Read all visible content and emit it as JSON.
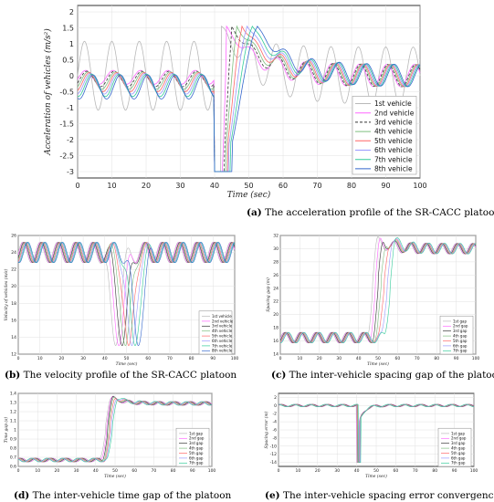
{
  "vehicle_colors": [
    "#b9b9b9",
    "#ff66ff",
    "#333333",
    "#7fbf7f",
    "#ff6666",
    "#9999ff",
    "#33cc99",
    "#3366cc"
  ],
  "chart_data": [
    {
      "id": "a",
      "type": "line",
      "caption_letter": "(a)",
      "caption": "The acceleration profile of the SR-CACC platoon",
      "xlabel": "Time (sec)",
      "ylabel": "Acceleration of vehicles (m/s²)",
      "xlim": [
        0,
        100
      ],
      "ylim": [
        -3.2,
        2.2
      ],
      "xticks": [
        0,
        10,
        20,
        30,
        40,
        50,
        60,
        70,
        80,
        90,
        100
      ],
      "yticks": [
        2,
        1.5,
        1,
        0.5,
        0,
        -0.5,
        -1,
        -1.5,
        -2,
        -2.5,
        -3
      ],
      "ytick_labels": [
        "2",
        "1.5",
        "1",
        "0.5",
        "0",
        "-0.5",
        "-1",
        "-1.5",
        "-2",
        "-2.5",
        "-3"
      ],
      "grid": true,
      "legend_position": "bottom-right",
      "series_names": [
        "1st vehicle",
        "2nd vehicle",
        "3rd vehicle",
        "4th vehicle",
        "5th vehicle",
        "6th vehicle",
        "7th vehicle",
        "8th vehicle"
      ],
      "shape": {
        "kind": "accel",
        "base": 0,
        "osc_amp": 0.9,
        "osc_period": 8,
        "drop_start": 40,
        "drop_value": -3,
        "drop_end": 42,
        "peak": 1.55,
        "lag": 1.5,
        "damp": 0.35
      }
    },
    {
      "id": "b",
      "type": "line",
      "caption_letter": "(b)",
      "caption": "The velocity profile of the SR-CACC platoon",
      "xlabel": "Time (sec)",
      "ylabel": "Velocity of vehicles (m/s)",
      "xlim": [
        0,
        100
      ],
      "ylim": [
        12,
        26
      ],
      "xticks": [
        0,
        10,
        20,
        30,
        40,
        50,
        60,
        70,
        80,
        90,
        100
      ],
      "yticks": [
        26,
        24,
        22,
        20,
        18,
        16,
        14,
        12
      ],
      "ytick_labels": [
        "26",
        "24",
        "22",
        "20",
        "18",
        "16",
        "14",
        "12"
      ],
      "grid": true,
      "legend_position": "bottom-right",
      "series_names": [
        "1st vehicle",
        "2nd vehicle",
        "3rd vehicle",
        "4th vehicle",
        "5th vehicle",
        "6th vehicle",
        "7th vehicle",
        "8th vehicle"
      ],
      "shape": {
        "kind": "velocity",
        "base": 24,
        "osc_amp": 1.2,
        "osc_period": 8,
        "dip_center": 45,
        "dip_value": 13,
        "lag": 1.5
      }
    },
    {
      "id": "c",
      "type": "line",
      "caption_letter": "(c)",
      "caption": "The inter-vehicle spacing gap of the platoon",
      "xlabel": "Time (sec)",
      "ylabel": "Spacing gap (m)",
      "xlim": [
        0,
        100
      ],
      "ylim": [
        14,
        32
      ],
      "xticks": [
        0,
        10,
        20,
        30,
        40,
        50,
        60,
        70,
        80,
        90,
        100
      ],
      "yticks": [
        32,
        30,
        28,
        26,
        24,
        22,
        20,
        18,
        16,
        14
      ],
      "ytick_labels": [
        "32",
        "30",
        "28",
        "26",
        "24",
        "22",
        "20",
        "18",
        "16",
        "14"
      ],
      "grid": true,
      "legend_position": "bottom-right",
      "series_names": [
        "1st gap",
        "2nd gap",
        "3rd gap",
        "4th gap",
        "5th gap",
        "6th gap",
        "7th gap"
      ],
      "shape": {
        "kind": "step",
        "low": 16.5,
        "high": 30,
        "overshoot": 1.2,
        "step_at": 47,
        "osc_amp": 0.8,
        "osc_period": 8,
        "lag": 1.5
      }
    },
    {
      "id": "d",
      "type": "line",
      "caption_letter": "(d)",
      "caption": "The inter-vehicle time gap of the platoon",
      "xlabel": "Time (sec)",
      "ylabel": "Time gap (s)",
      "xlim": [
        0,
        100
      ],
      "ylim": [
        0.6,
        1.4
      ],
      "xticks": [
        0,
        10,
        20,
        30,
        40,
        50,
        60,
        70,
        80,
        90,
        100
      ],
      "yticks": [
        1.4,
        1.3,
        1.2,
        1.1,
        1,
        0.9,
        0.8,
        0.7,
        0.6
      ],
      "ytick_labels": [
        "1.4",
        "1.3",
        "1.2",
        "1.1",
        "1",
        "0.9",
        "0.8",
        "0.7",
        "0.6"
      ],
      "grid": true,
      "legend_position": "bottom-right",
      "series_names": [
        "1st gap",
        "2nd gap",
        "3rd gap",
        "4th gap",
        "5th gap",
        "6th gap",
        "7th gap"
      ],
      "shape": {
        "kind": "step",
        "low": 0.67,
        "high": 1.29,
        "overshoot": 0.07,
        "step_at": 45,
        "osc_amp": 0.02,
        "osc_period": 8,
        "lag": 0.6
      }
    },
    {
      "id": "e",
      "type": "line",
      "caption_letter": "(e)",
      "caption": "The inter-vehicle spacing error convergence curve",
      "xlabel": "Time (sec)",
      "ylabel": "Spacing error (m)",
      "xlim": [
        0,
        100
      ],
      "ylim": [
        -15,
        3
      ],
      "xticks": [
        0,
        10,
        20,
        30,
        40,
        50,
        60,
        70,
        80,
        90,
        100
      ],
      "yticks": [
        2,
        0,
        -2,
        -4,
        -6,
        -8,
        -10,
        -12,
        -14
      ],
      "ytick_labels": [
        "2",
        "0",
        "-2",
        "-4",
        "-6",
        "-8",
        "-10",
        "-12",
        "-14"
      ],
      "grid": true,
      "legend_position": "bottom-right",
      "series_names": [
        "1st gap",
        "2nd gap",
        "3rd gap",
        "4th gap",
        "5th gap",
        "6th gap",
        "7th gap"
      ],
      "shape": {
        "kind": "spike",
        "base": 0,
        "spike_at": 40,
        "spike_value": -14,
        "osc_amp": 0.5,
        "osc_period": 8,
        "lag": 0.8
      }
    }
  ]
}
